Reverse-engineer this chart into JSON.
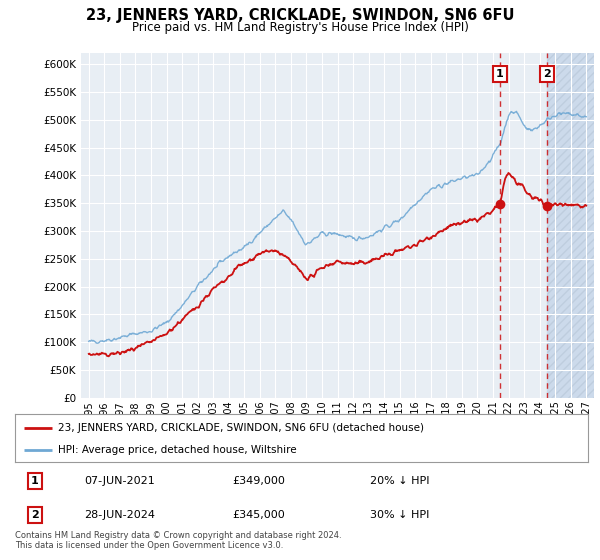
{
  "title": "23, JENNERS YARD, CRICKLADE, SWINDON, SN6 6FU",
  "subtitle": "Price paid vs. HM Land Registry's House Price Index (HPI)",
  "ylabel_ticks": [
    "£0",
    "£50K",
    "£100K",
    "£150K",
    "£200K",
    "£250K",
    "£300K",
    "£350K",
    "£400K",
    "£450K",
    "£500K",
    "£550K",
    "£600K"
  ],
  "ylim": [
    0,
    620000
  ],
  "xlim_start": 1994.5,
  "xlim_end": 2027.5,
  "hpi_color": "#6fa8d4",
  "price_color": "#cc1111",
  "marker1_date": 2021.44,
  "marker2_date": 2024.49,
  "marker1_price": 349000,
  "marker2_price": 345000,
  "annotation1": "1",
  "annotation2": "2",
  "legend_label1": "23, JENNERS YARD, CRICKLADE, SWINDON, SN6 6FU (detached house)",
  "legend_label2": "HPI: Average price, detached house, Wiltshire",
  "table_row1": [
    "1",
    "07-JUN-2021",
    "£349,000",
    "20% ↓ HPI"
  ],
  "table_row2": [
    "2",
    "28-JUN-2024",
    "£345,000",
    "30% ↓ HPI"
  ],
  "footer": "Contains HM Land Registry data © Crown copyright and database right 2024.\nThis data is licensed under the Open Government Licence v3.0.",
  "background_color": "#ffffff",
  "plot_bg_color": "#e8eef4",
  "grid_color": "#ffffff",
  "shaded_color": "#ccdaeb",
  "shaded_start": 2024.5
}
